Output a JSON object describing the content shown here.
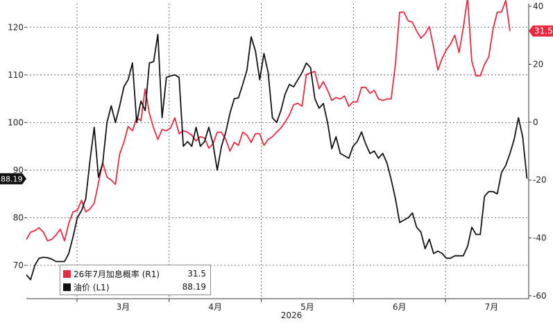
{
  "chart_data": {
    "type": "line",
    "xlabel": "2026",
    "x_tick_labels": [
      "3月",
      "4月",
      "5月",
      "6月",
      "7月"
    ],
    "grid": true,
    "legend_placement": "bottom-left",
    "left_axis": {
      "ticks": [
        "70",
        "80",
        "90",
        "100",
        "110",
        "120"
      ],
      "ylim": [
        63,
        125
      ]
    },
    "right_axis": {
      "ticks": [
        "40",
        "20",
        "0",
        "-20",
        "-40",
        "-60"
      ],
      "ylim": [
        -61,
        41
      ]
    },
    "series": [
      {
        "name": "26年7月加息概率 (R1)",
        "axis": "right",
        "color": "#e8283f",
        "last_label": "31.5",
        "legend_value": "31.5",
        "values": [
          -40.5,
          -38.0,
          -37.5,
          -36.5,
          -38.0,
          -41.0,
          -40.5,
          -39.0,
          -37.0,
          -41.0,
          -35.0,
          -31.0,
          -30.5,
          -27.0,
          -31.0,
          -30.0,
          -28.0,
          -21.0,
          -14.0,
          -19.0,
          -20.0,
          -21.5,
          -11.0,
          -7.0,
          -1.5,
          -3.0,
          1.5,
          0.5,
          11.5,
          3.0,
          -2.0,
          -6.0,
          -2.5,
          -3.0,
          -2.0,
          1.5,
          -4.0,
          -3.0,
          -3.5,
          -4.5,
          -6.5,
          -5.0,
          -5.5,
          -9.0,
          -7.5,
          -3.5,
          -3.5,
          -6.0,
          -10.0,
          -7.0,
          -8.0,
          -3.5,
          -4.5,
          -7.0,
          -4.0,
          -4.0,
          -8.0,
          -6.0,
          -5.0,
          -3.5,
          -2.0,
          0.0,
          2.5,
          6.0,
          6.5,
          5.5,
          16.5,
          17.0,
          17.5,
          11.5,
          14.0,
          11.0,
          7.5,
          8.5,
          8.0,
          9.0,
          5.5,
          7.0,
          7.0,
          12.0,
          12.0,
          10.0,
          11.0,
          8.0,
          7.5,
          8.0,
          8.0,
          20.0,
          38.0,
          38.0,
          35.0,
          34.5,
          31.5,
          29.0,
          30.5,
          33.0,
          26.0,
          18.0,
          22.0,
          25.0,
          27.0,
          30.0,
          24.0,
          32.5,
          43.0,
          21.0,
          16.0,
          16.0,
          20.0,
          22.5,
          32.0,
          38.0,
          38.0,
          42.0,
          31.5
        ]
      },
      {
        "name": "油价 (L1)",
        "axis": "left",
        "color": "#111111",
        "last_label": "88.19",
        "legend_value": "88.19",
        "values": [
          68.0,
          67.0,
          70.0,
          71.5,
          71.7,
          71.6,
          71.3,
          70.8,
          70.8,
          70.8,
          72.5,
          76.0,
          80.0,
          81.5,
          84.0,
          92.0,
          99.0,
          88.5,
          91.5,
          100.0,
          103.5,
          100.0,
          103.5,
          107.5,
          109.0,
          112.5,
          100.0,
          104.5,
          102.5,
          112.5,
          112.8,
          118.5,
          101.0,
          109.5,
          109.8,
          110.0,
          109.5,
          95.0,
          96.0,
          95.0,
          99.0,
          95.0,
          96.0,
          99.0,
          95.5,
          90.0,
          95.0,
          98.0,
          102.0,
          105.0,
          105.2,
          108.0,
          111.0,
          118.0,
          115.0,
          109.0,
          114.5,
          110.5,
          101.0,
          100.0,
          102.5,
          106.0,
          108.0,
          107.5,
          109.0,
          110.5,
          112.5,
          111.5,
          105.0,
          103.0,
          104.0,
          100.0,
          94.5,
          97.0,
          93.5,
          93.0,
          92.5,
          95.0,
          96.0,
          98.0,
          95.5,
          93.5,
          94.0,
          92.5,
          93.5,
          91.5,
          88.0,
          84.0,
          79.0,
          79.5,
          80.0,
          81.0,
          78.0,
          77.0,
          73.5,
          75.5,
          72.5,
          73.0,
          72.5,
          71.5,
          71.5,
          72.0,
          72.0,
          72.0,
          74.0,
          78.0,
          76.5,
          76.5,
          84.5,
          85.5,
          85.5,
          85.0,
          89.5,
          91.0,
          93.5,
          96.5,
          101.0,
          97.0,
          88.19
        ]
      }
    ]
  }
}
